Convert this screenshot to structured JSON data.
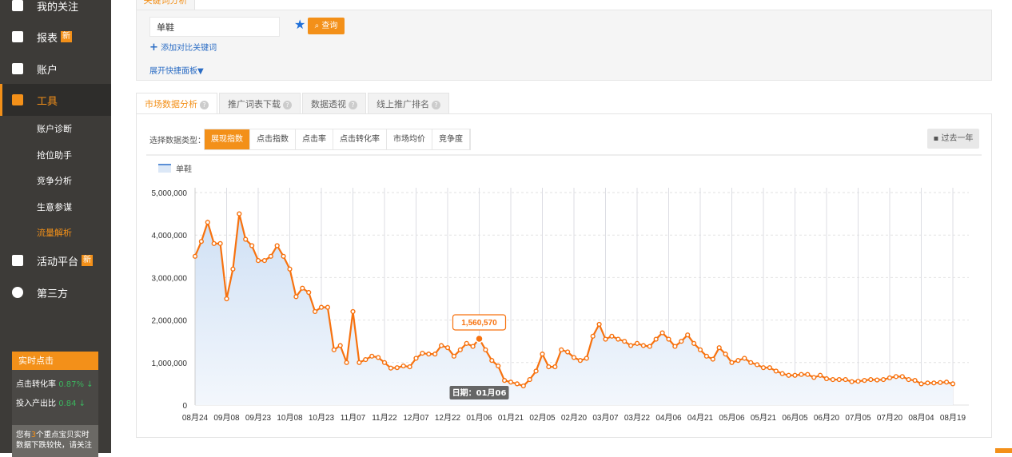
{
  "sidebar": {
    "items": [
      {
        "label": "我的关注",
        "icon": "heart-icon"
      },
      {
        "label": "报表",
        "badge": "新",
        "icon": "report-icon"
      },
      {
        "label": "账户",
        "icon": "account-card-icon"
      },
      {
        "label": "工具",
        "icon": "toolbox-icon"
      }
    ],
    "sub_items": [
      "账户诊断",
      "抢位助手",
      "竞争分析",
      "生意参谋",
      "流量解析"
    ],
    "items2": [
      {
        "label": "活动平台",
        "badge": "新",
        "icon": "gift-icon"
      },
      {
        "label": "第三方",
        "icon": "third-party-icon"
      }
    ],
    "widget": {
      "title": "实时点击",
      "rows": [
        {
          "label": "点击转化率",
          "value": "0.87%",
          "trend": "↓"
        },
        {
          "label": "投入产出比",
          "value": "0.84",
          "trend": "↓"
        }
      ],
      "note_pre": "您有",
      "note_count": "3",
      "note_post": "个重点宝贝实时数据下跌较快，请关注"
    }
  },
  "keyword": {
    "tab": "关键词分析",
    "value": "单鞋",
    "query": "查询",
    "add": "添加对比关键词",
    "expand": "展开快捷面板▼"
  },
  "tabs": [
    {
      "label": "市场数据分析"
    },
    {
      "label": "推广词表下载"
    },
    {
      "label": "数据透视"
    },
    {
      "label": "线上推广排名"
    }
  ],
  "datatype": {
    "label": "选择数据类型：",
    "options": [
      "展现指数",
      "点击指数",
      "点击率",
      "点击转化率",
      "市场均价",
      "竞争度"
    ],
    "selected": "展现指数"
  },
  "range": "过去一年",
  "colors": {
    "accent": "#f39019",
    "line": "#f7720f",
    "area": "#dce8f7",
    "link": "#2a6cc4"
  },
  "chart_data": {
    "type": "line",
    "legend": "单鞋",
    "ylim": [
      0,
      5000000
    ],
    "yticks": [
      0,
      1000000,
      2000000,
      3000000,
      4000000,
      5000000
    ],
    "xticks": [
      "08月24",
      "09月08",
      "09月23",
      "10月08",
      "10月23",
      "11月07",
      "11月22",
      "12月07",
      "12月22",
      "01月06",
      "01月21",
      "02月05",
      "02月20",
      "03月07",
      "03月22",
      "04月06",
      "04月21",
      "05月06",
      "05月21",
      "06月05",
      "06月20",
      "07月05",
      "07月20",
      "08月04",
      "08月19"
    ],
    "grid": true,
    "tooltip": {
      "date": "日期：01月06",
      "value": "1,560,570",
      "index": 45
    },
    "x": [
      "08-24",
      "08-27",
      "08-30",
      "09-02",
      "09-05",
      "09-08",
      "09-11",
      "09-14",
      "09-17",
      "09-20",
      "09-23",
      "09-26",
      "09-29",
      "10-02",
      "10-05",
      "10-08",
      "10-11",
      "10-14",
      "10-17",
      "10-20",
      "10-23",
      "10-26",
      "10-29",
      "11-01",
      "11-04",
      "11-07",
      "11-10",
      "11-13",
      "11-16",
      "11-19",
      "11-22",
      "11-25",
      "11-28",
      "12-01",
      "12-04",
      "12-07",
      "12-10",
      "12-13",
      "12-16",
      "12-19",
      "12-22",
      "12-25",
      "12-28",
      "12-31",
      "01-03",
      "01-06",
      "01-09",
      "01-12",
      "01-15",
      "01-18",
      "01-21",
      "01-24",
      "01-27",
      "01-30",
      "02-02",
      "02-05",
      "02-08",
      "02-11",
      "02-14",
      "02-17",
      "02-20",
      "02-23",
      "02-26",
      "03-01",
      "03-04",
      "03-07",
      "03-10",
      "03-13",
      "03-16",
      "03-19",
      "03-22",
      "03-25",
      "03-28",
      "03-31",
      "04-03",
      "04-06",
      "04-09",
      "04-12",
      "04-15",
      "04-18",
      "04-21",
      "04-24",
      "04-27",
      "04-30",
      "05-03",
      "05-06",
      "05-09",
      "05-12",
      "05-15",
      "05-18",
      "05-21",
      "05-24",
      "05-27",
      "05-30",
      "06-02",
      "06-05",
      "06-08",
      "06-11",
      "06-14",
      "06-17",
      "06-20",
      "06-23",
      "06-26",
      "06-29",
      "07-02",
      "07-05",
      "07-08",
      "07-11",
      "07-14",
      "07-17",
      "07-20",
      "07-23",
      "07-26",
      "07-29",
      "08-01",
      "08-04",
      "08-07",
      "08-10",
      "08-13",
      "08-16",
      "08-19"
    ],
    "values": [
      3500000,
      3850000,
      4300000,
      3800000,
      3800000,
      2500000,
      3200000,
      4500000,
      3900000,
      3750000,
      3400000,
      3400000,
      3500000,
      3750000,
      3500000,
      3200000,
      2550000,
      2750000,
      2650000,
      2200000,
      2300000,
      2300000,
      1300000,
      1400000,
      1000000,
      2200000,
      1000000,
      1070000,
      1150000,
      1120000,
      1000000,
      870000,
      880000,
      920000,
      900000,
      1100000,
      1220000,
      1200000,
      1200000,
      1400000,
      1350000,
      1150000,
      1300000,
      1450000,
      1380000,
      1560570,
      1300000,
      1050000,
      920000,
      580000,
      540000,
      500000,
      450000,
      600000,
      800000,
      1200000,
      900000,
      900000,
      1300000,
      1250000,
      1120000,
      1050000,
      1100000,
      1620000,
      1900000,
      1550000,
      1620000,
      1550000,
      1500000,
      1400000,
      1450000,
      1400000,
      1380000,
      1550000,
      1700000,
      1550000,
      1380000,
      1500000,
      1650000,
      1450000,
      1300000,
      1150000,
      1080000,
      1350000,
      1200000,
      1000000,
      1050000,
      1100000,
      1000000,
      950000,
      880000,
      880000,
      800000,
      740000,
      700000,
      700000,
      720000,
      720000,
      650000,
      700000,
      620000,
      600000,
      600000,
      600000,
      550000,
      560000,
      580000,
      600000,
      590000,
      600000,
      640000,
      670000,
      670000,
      600000,
      580000,
      500000,
      520000,
      520000,
      530000,
      540000,
      500000
    ]
  }
}
